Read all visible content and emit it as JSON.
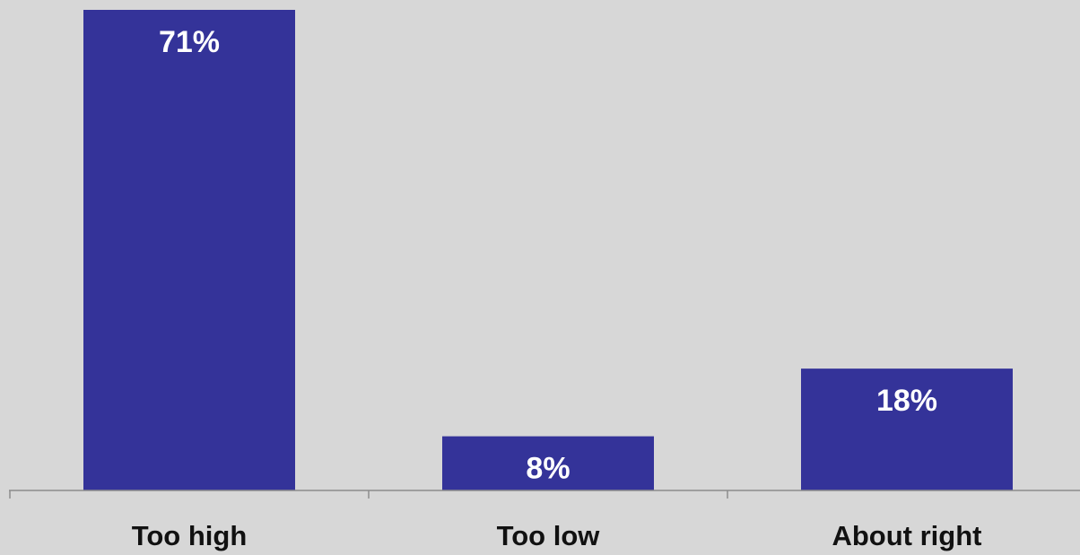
{
  "chart_data": {
    "type": "bar",
    "categories": [
      "Too high",
      "Too low",
      "About right"
    ],
    "values": [
      71,
      8,
      18
    ],
    "data_labels": [
      "71%",
      "8%",
      "18%"
    ],
    "ylim": [
      0,
      71
    ],
    "grid": false,
    "legend": "none",
    "colors": {
      "bar": "#343399",
      "background": "#d7d7d7",
      "axis": "#8c8c8c",
      "data_label": "#ffffff",
      "category_label": "#111111"
    }
  }
}
